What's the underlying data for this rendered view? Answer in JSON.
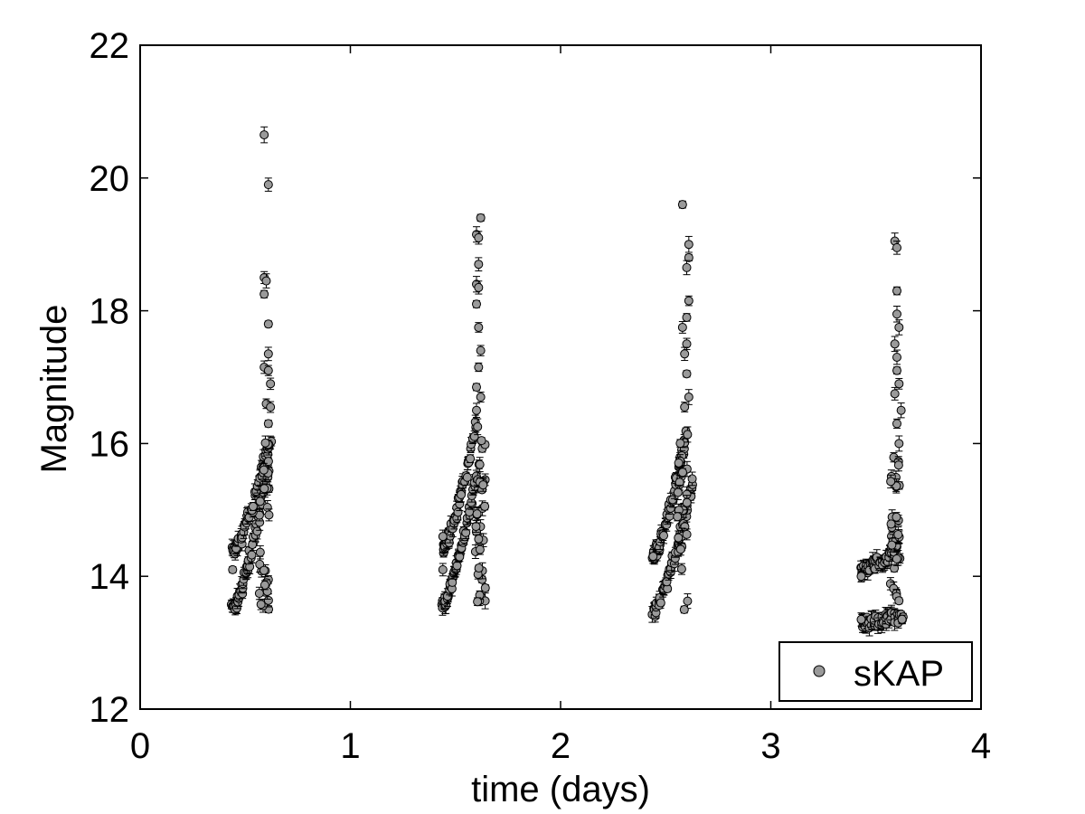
{
  "chart_data": {
    "type": "scatter",
    "title": "",
    "xlabel": "time (days)",
    "ylabel": "Magnitude",
    "xlim": [
      0,
      4
    ],
    "ylim": [
      12,
      22
    ],
    "x_ticks": [
      0,
      1,
      2,
      3,
      4
    ],
    "y_ticks": [
      12,
      14,
      16,
      18,
      20,
      22
    ],
    "x_tick_labels": [
      "0",
      "1",
      "2",
      "3",
      "4"
    ],
    "y_tick_labels": [
      "12",
      "14",
      "16",
      "18",
      "20",
      "22"
    ],
    "grid": false,
    "error_bars": true,
    "legend": {
      "position": "bottom-right",
      "entries": [
        "sKAP"
      ]
    },
    "series": [
      {
        "name": "sKAP",
        "marker": "circle",
        "marker_color": "#9a9a9a",
        "edge_color": "#000000",
        "groups": [
          {
            "lower_branch": {
              "x_start": 0.44,
              "y_start": 13.5,
              "x_end": 0.61,
              "y_end": 15.6
            },
            "upper_branch": {
              "x_start": 0.44,
              "y_start": 14.35,
              "x_end": 0.62,
              "y_end": 16.1
            },
            "scatter_top": [
              [
                0.59,
                20.65
              ],
              [
                0.61,
                19.9
              ],
              [
                0.59,
                18.5
              ],
              [
                0.6,
                18.45
              ],
              [
                0.59,
                18.25
              ],
              [
                0.61,
                17.8
              ],
              [
                0.61,
                17.35
              ],
              [
                0.59,
                17.15
              ],
              [
                0.61,
                17.1
              ],
              [
                0.62,
                16.9
              ],
              [
                0.6,
                16.6
              ],
              [
                0.62,
                16.55
              ],
              [
                0.61,
                16.3
              ]
            ],
            "upper_left_points": [
              [
                0.44,
                14.1
              ]
            ]
          },
          {
            "lower_branch": {
              "x_start": 1.44,
              "y_start": 13.6,
              "x_end": 1.61,
              "y_end": 15.6
            },
            "upper_branch": {
              "x_start": 1.44,
              "y_start": 14.4,
              "x_end": 1.6,
              "y_end": 16.3
            },
            "scatter_top": [
              [
                1.62,
                19.4
              ],
              [
                1.6,
                19.15
              ],
              [
                1.61,
                19.1
              ],
              [
                1.61,
                18.7
              ],
              [
                1.6,
                18.4
              ],
              [
                1.61,
                18.35
              ],
              [
                1.6,
                18.1
              ],
              [
                1.61,
                17.75
              ],
              [
                1.62,
                17.4
              ],
              [
                1.61,
                17.15
              ],
              [
                1.6,
                16.85
              ],
              [
                1.62,
                16.7
              ],
              [
                1.6,
                16.5
              ]
            ],
            "upper_left_points": [
              [
                1.44,
                14.1
              ],
              [
                1.44,
                14.6
              ]
            ]
          },
          {
            "lower_branch": {
              "x_start": 2.44,
              "y_start": 13.45,
              "x_end": 2.63,
              "y_end": 15.4
            },
            "upper_branch": {
              "x_start": 2.44,
              "y_start": 14.3,
              "x_end": 2.6,
              "y_end": 16.2
            },
            "scatter_top": [
              [
                2.58,
                19.6
              ],
              [
                2.61,
                19.0
              ],
              [
                2.61,
                18.8
              ],
              [
                2.6,
                18.65
              ],
              [
                2.61,
                18.15
              ],
              [
                2.6,
                17.9
              ],
              [
                2.58,
                17.75
              ],
              [
                2.6,
                17.5
              ],
              [
                2.59,
                17.35
              ],
              [
                2.6,
                17.05
              ],
              [
                2.61,
                16.7
              ],
              [
                2.59,
                16.55
              ]
            ],
            "upper_left_points": [
              [
                2.44,
                14.3
              ]
            ]
          },
          {
            "lower_branch": {
              "x_start": 3.43,
              "y_start": 13.3,
              "x_end": 3.63,
              "y_end": 13.4
            },
            "upper_branch": {
              "x_start": 3.43,
              "y_start": 14.1,
              "x_end": 3.6,
              "y_end": 14.4
            },
            "scatter_top": [
              [
                3.59,
                19.05
              ],
              [
                3.6,
                18.95
              ],
              [
                3.6,
                18.3
              ],
              [
                3.6,
                17.95
              ],
              [
                3.61,
                17.75
              ],
              [
                3.59,
                17.5
              ],
              [
                3.6,
                17.3
              ],
              [
                3.6,
                17.1
              ],
              [
                3.61,
                16.9
              ],
              [
                3.59,
                16.75
              ],
              [
                3.62,
                16.5
              ],
              [
                3.6,
                16.3
              ],
              [
                3.61,
                16.0
              ]
            ],
            "upper_left_points": [
              [
                3.43,
                14.0
              ],
              [
                3.43,
                13.35
              ]
            ]
          }
        ]
      }
    ]
  }
}
